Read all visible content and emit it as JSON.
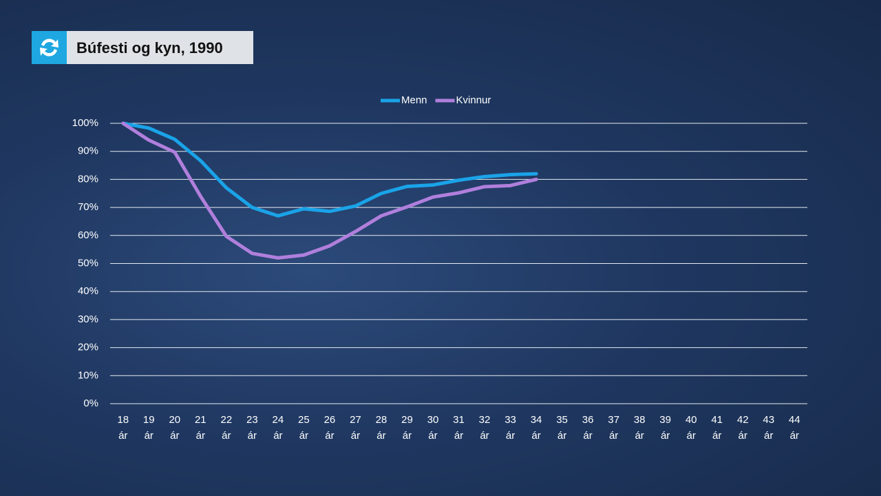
{
  "chart_data": {
    "type": "line",
    "title": "Búfesti og kyn, 1990",
    "categories": [
      "18 ár",
      "19 ár",
      "20 ár",
      "21 ár",
      "22 ár",
      "23 ár",
      "24 ár",
      "25 ár",
      "26 ár",
      "27 ár",
      "28 ár",
      "29 ár",
      "30 ár",
      "31 ár",
      "32 ár",
      "33 ár",
      "34 ár",
      "35 ár",
      "36 ár",
      "37 ár",
      "38 ár",
      "39 ár",
      "40 ár",
      "41 ár",
      "42 ár",
      "43 ár",
      "44 ár"
    ],
    "series": [
      {
        "name": "Menn",
        "color": "#1aa3e8",
        "values": [
          100,
          98.3,
          94.3,
          86.7,
          77,
          70,
          67,
          69.5,
          68.6,
          70.5,
          75,
          77.5,
          78,
          79.7,
          81,
          81.7,
          82,
          null,
          null,
          null,
          null,
          null,
          null,
          null,
          null,
          null,
          null
        ]
      },
      {
        "name": "Kvinnur",
        "color": "#b07fdc",
        "values": [
          100,
          94,
          89.7,
          74,
          59.7,
          53.6,
          52,
          53,
          56.3,
          61.4,
          67,
          70.2,
          73.7,
          75.2,
          77.4,
          77.8,
          80,
          null,
          null,
          null,
          null,
          null,
          null,
          null,
          null,
          null,
          null
        ]
      }
    ],
    "ylim": [
      0,
      100
    ],
    "yticks": [
      {
        "value": 0,
        "label": "0%"
      },
      {
        "value": 10,
        "label": "10%"
      },
      {
        "value": 20,
        "label": "20%"
      },
      {
        "value": 30,
        "label": "30%"
      },
      {
        "value": 40,
        "label": "40%"
      },
      {
        "value": 50,
        "label": "50%"
      },
      {
        "value": 60,
        "label": "60%"
      },
      {
        "value": 70,
        "label": "70%"
      },
      {
        "value": 80,
        "label": "80%"
      },
      {
        "value": 90,
        "label": "90%"
      },
      {
        "value": 100,
        "label": "100%"
      }
    ],
    "grid": true,
    "legend": "top"
  }
}
